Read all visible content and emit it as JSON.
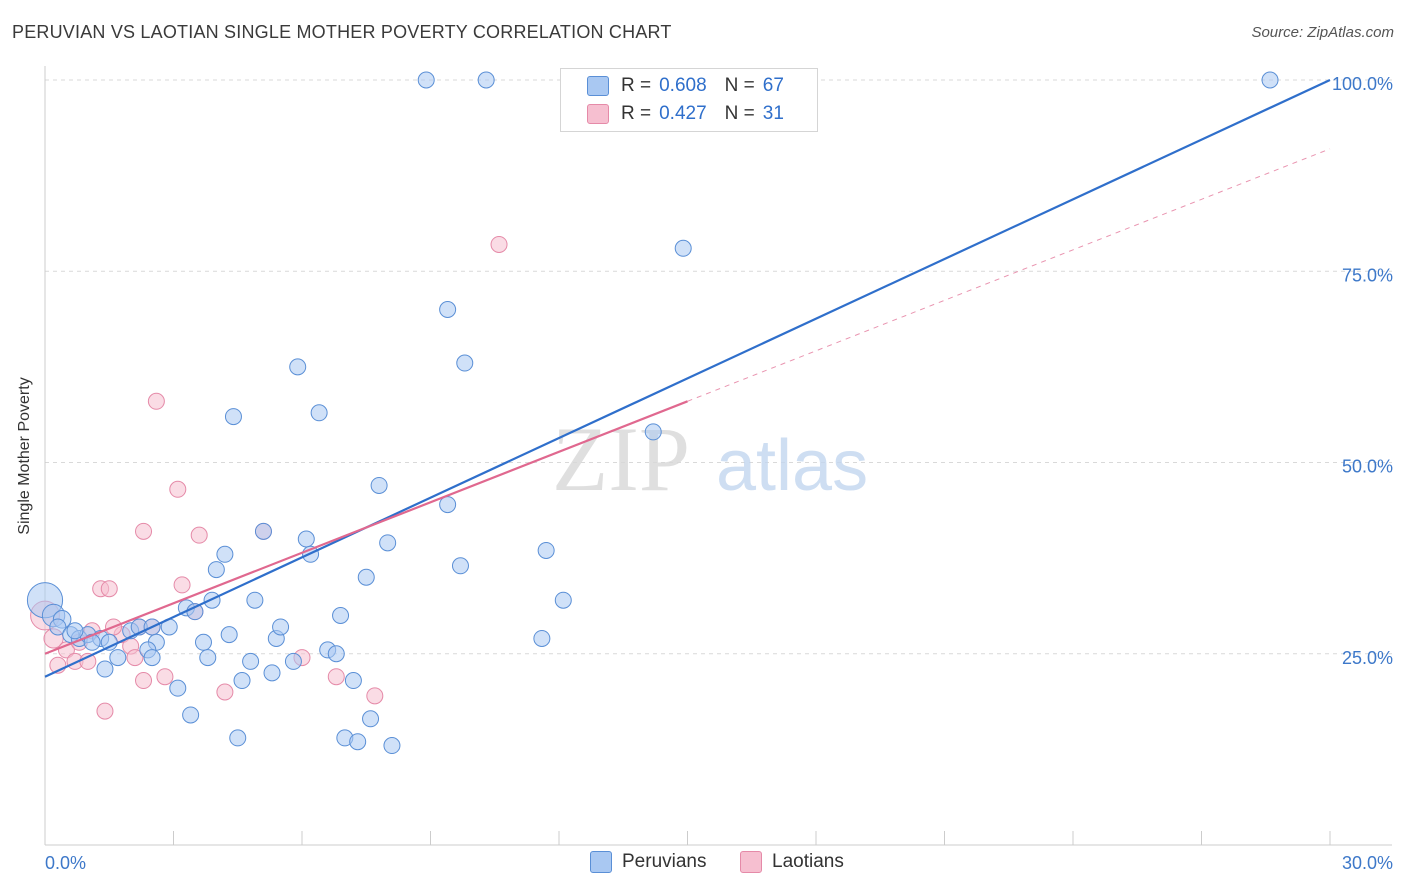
{
  "title": "PERUVIAN VS LAOTIAN SINGLE MOTHER POVERTY CORRELATION CHART",
  "source": "Source: ZipAtlas.com",
  "watermark_left": "ZIP",
  "watermark_right": "atlas",
  "legend": {
    "rows": [
      {
        "r_label": "R =",
        "r_value": "0.608",
        "n_label": "N =",
        "n_value": "67"
      },
      {
        "r_label": "R =",
        "r_value": "0.427",
        "n_label": "N =",
        "n_value": "31"
      }
    ]
  },
  "colors": {
    "peruvians_fill": "#a9c8f2",
    "peruvians_stroke": "#5a8fd6",
    "peruvians_line": "#2f6fcb",
    "laotians_fill": "#f6bfd0",
    "laotians_stroke": "#e58aa8",
    "laotians_line": "#e0688f",
    "tick_label": "#3d78c9",
    "grid": "#d9d9d9"
  },
  "chart_data": {
    "type": "scatter",
    "title": "PERUVIAN VS LAOTIAN SINGLE MOTHER POVERTY CORRELATION CHART",
    "xlabel": "",
    "ylabel": "Single Mother Poverty",
    "xlim": [
      0,
      30
    ],
    "ylim": [
      0,
      100
    ],
    "x_tick_labels": [
      "0.0%",
      "30.0%"
    ],
    "y_ticks": [
      25,
      50,
      75,
      100
    ],
    "y_tick_labels": [
      "25.0%",
      "50.0%",
      "75.0%",
      "100.0%"
    ],
    "grid": "horizontal dashed",
    "legend_position": "top-center",
    "series": [
      {
        "name": "Peruvians",
        "r": 0.608,
        "n": 67,
        "trend": {
          "x0": 0,
          "y0": 22.0,
          "x1": 30,
          "y1": 100.0,
          "style": "solid"
        },
        "points": [
          [
            0.0,
            32.0,
            2.2
          ],
          [
            0.2,
            30.0,
            1.4
          ],
          [
            0.4,
            29.5,
            1.1
          ],
          [
            0.3,
            28.5,
            1.0
          ],
          [
            0.6,
            27.5,
            1.0
          ],
          [
            0.8,
            27.0,
            1.0
          ],
          [
            1.0,
            27.5,
            1.0
          ],
          [
            1.3,
            27.0,
            1.0
          ],
          [
            1.5,
            26.5,
            1.0
          ],
          [
            1.7,
            24.5,
            1.0
          ],
          [
            1.4,
            23.0,
            1.0
          ],
          [
            2.0,
            28.0,
            1.0
          ],
          [
            2.2,
            28.5,
            1.0
          ],
          [
            2.5,
            28.5,
            1.0
          ],
          [
            2.6,
            26.5,
            1.0
          ],
          [
            2.4,
            25.5,
            1.0
          ],
          [
            2.5,
            24.5,
            1.0
          ],
          [
            2.9,
            28.5,
            1.0
          ],
          [
            3.1,
            20.5,
            1.0
          ],
          [
            3.4,
            17.0,
            1.0
          ],
          [
            3.3,
            31.0,
            1.0
          ],
          [
            3.5,
            30.5,
            1.0
          ],
          [
            3.7,
            26.5,
            1.0
          ],
          [
            3.8,
            24.5,
            1.0
          ],
          [
            3.9,
            32.0,
            1.0
          ],
          [
            4.0,
            36.0,
            1.0
          ],
          [
            4.2,
            38.0,
            1.0
          ],
          [
            4.3,
            27.5,
            1.0
          ],
          [
            4.4,
            56.0,
            1.0
          ],
          [
            4.5,
            14.0,
            1.0
          ],
          [
            4.6,
            21.5,
            1.0
          ],
          [
            4.8,
            24.0,
            1.0
          ],
          [
            4.9,
            32.0,
            1.0
          ],
          [
            5.1,
            41.0,
            1.0
          ],
          [
            5.3,
            22.5,
            1.0
          ],
          [
            5.4,
            27.0,
            1.0
          ],
          [
            5.5,
            28.5,
            1.0
          ],
          [
            5.8,
            24.0,
            1.0
          ],
          [
            5.9,
            62.5,
            1.0
          ],
          [
            6.1,
            40.0,
            1.0
          ],
          [
            6.2,
            38.0,
            1.0
          ],
          [
            6.4,
            56.5,
            1.0
          ],
          [
            6.6,
            25.5,
            1.0
          ],
          [
            6.8,
            25.0,
            1.0
          ],
          [
            6.9,
            30.0,
            1.0
          ],
          [
            7.0,
            14.0,
            1.0
          ],
          [
            7.2,
            21.5,
            1.0
          ],
          [
            7.3,
            13.5,
            1.0
          ],
          [
            7.5,
            35.0,
            1.0
          ],
          [
            7.6,
            16.5,
            1.0
          ],
          [
            7.8,
            47.0,
            1.0
          ],
          [
            8.0,
            39.5,
            1.0
          ],
          [
            8.1,
            13.0,
            1.0
          ],
          [
            8.9,
            100.0,
            1.0
          ],
          [
            9.4,
            70.0,
            1.0
          ],
          [
            9.4,
            44.5,
            1.0
          ],
          [
            9.7,
            36.5,
            1.0
          ],
          [
            9.8,
            63.0,
            1.0
          ],
          [
            10.3,
            100.0,
            1.0
          ],
          [
            11.6,
            27.0,
            1.0
          ],
          [
            11.7,
            38.5,
            1.0
          ],
          [
            12.1,
            32.0,
            1.0
          ],
          [
            14.2,
            54.0,
            1.0
          ],
          [
            14.9,
            78.0,
            1.0
          ],
          [
            28.6,
            100.0,
            1.0
          ],
          [
            0.7,
            28.0,
            1.0
          ],
          [
            1.1,
            26.5,
            1.0
          ]
        ]
      },
      {
        "name": "Laotians",
        "r": 0.427,
        "n": 31,
        "trend": {
          "x0": 0,
          "y0": 25.0,
          "x1": 15,
          "y1": 58.0,
          "style": "solid"
        },
        "trend_extension": {
          "x0": 15,
          "y0": 58.0,
          "x1": 30,
          "y1": 91.0,
          "style": "dashed"
        },
        "points": [
          [
            0.0,
            30.0,
            1.8
          ],
          [
            0.2,
            27.0,
            1.2
          ],
          [
            0.3,
            23.5,
            1.0
          ],
          [
            0.5,
            25.5,
            1.0
          ],
          [
            0.7,
            24.0,
            1.0
          ],
          [
            0.8,
            26.5,
            1.0
          ],
          [
            1.0,
            24.0,
            1.0
          ],
          [
            1.1,
            28.0,
            1.0
          ],
          [
            1.3,
            33.5,
            1.0
          ],
          [
            1.5,
            33.5,
            1.0
          ],
          [
            1.4,
            17.5,
            1.0
          ],
          [
            1.8,
            27.5,
            1.0
          ],
          [
            2.0,
            26.0,
            1.0
          ],
          [
            2.1,
            24.5,
            1.0
          ],
          [
            2.3,
            21.5,
            1.0
          ],
          [
            2.3,
            41.0,
            1.0
          ],
          [
            2.5,
            28.5,
            1.0
          ],
          [
            2.6,
            58.0,
            1.0
          ],
          [
            2.8,
            22.0,
            1.0
          ],
          [
            3.1,
            46.5,
            1.0
          ],
          [
            3.2,
            34.0,
            1.0
          ],
          [
            3.5,
            30.5,
            1.0
          ],
          [
            3.6,
            40.5,
            1.0
          ],
          [
            4.2,
            20.0,
            1.0
          ],
          [
            5.1,
            41.0,
            1.0
          ],
          [
            6.0,
            24.5,
            1.0
          ],
          [
            6.8,
            22.0,
            1.0
          ],
          [
            7.7,
            19.5,
            1.0
          ],
          [
            10.6,
            78.5,
            1.0
          ],
          [
            1.6,
            28.5,
            1.0
          ],
          [
            2.2,
            28.5,
            1.0
          ]
        ]
      }
    ]
  }
}
